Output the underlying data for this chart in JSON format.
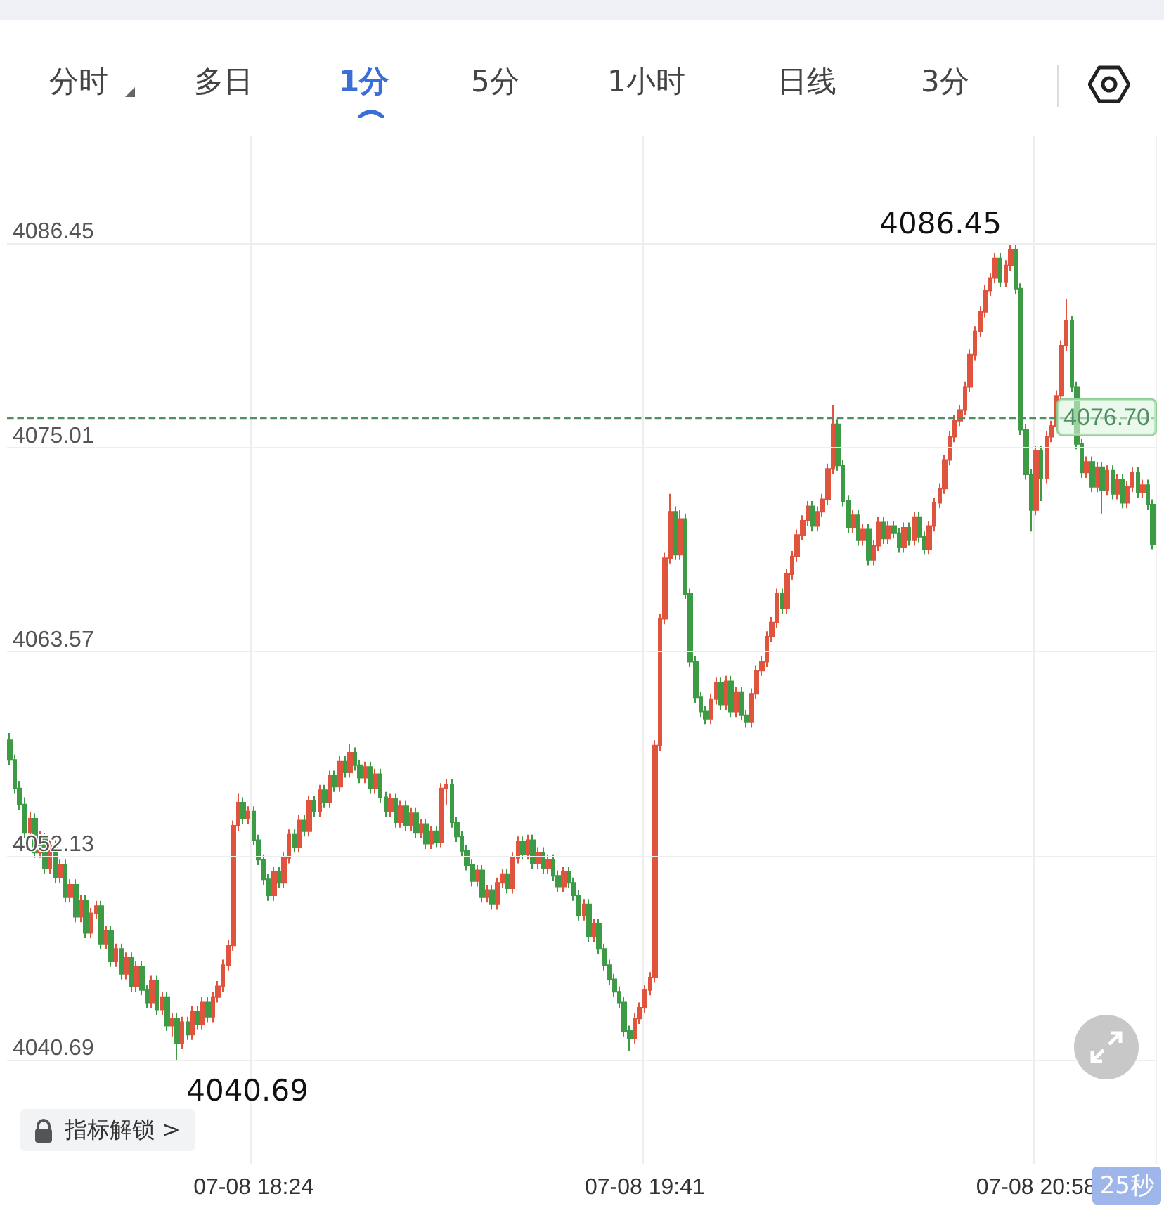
{
  "chart_data": {
    "type": "candlestick",
    "annotations": [
      "分时",
      "多日",
      "1分",
      "5分",
      "1小时",
      "日线",
      "3分",
      "指标解锁 >",
      "25秒",
      "4086.45",
      "4040.69"
    ],
    "categories": [
      null,
      null,
      null,
      null,
      null,
      null,
      null,
      null,
      null,
      null,
      null,
      null,
      null,
      null,
      null,
      null,
      null,
      null,
      null,
      null,
      null,
      null,
      null,
      null,
      null,
      null,
      null,
      null,
      null,
      null,
      null,
      null,
      null,
      null,
      null,
      null,
      null,
      null,
      null,
      null,
      null,
      null,
      null,
      null,
      null,
      null,
      null,
      null,
      "07-08 18:24",
      null,
      null,
      null,
      null,
      null,
      null,
      null,
      null,
      null,
      null,
      null,
      null,
      null,
      null,
      null,
      null,
      null,
      null,
      null,
      null,
      null,
      null,
      null,
      null,
      null,
      null,
      null,
      null,
      null,
      null,
      null,
      null,
      null,
      null,
      null,
      null,
      null,
      null,
      null,
      null,
      null,
      null,
      null,
      null,
      null,
      null,
      null,
      null,
      null,
      null,
      null,
      null,
      null,
      null,
      null,
      null,
      null,
      null,
      null,
      null,
      null,
      null,
      null,
      null,
      null,
      null,
      null,
      null,
      null,
      null,
      null,
      null,
      null,
      null,
      null,
      null,
      "07-08 19:41",
      null,
      null,
      null,
      null,
      null,
      null,
      null,
      null,
      null,
      null,
      null,
      null,
      null,
      null,
      null,
      null,
      null,
      null,
      null,
      null,
      null,
      null,
      null,
      null,
      null,
      null,
      null,
      null,
      null,
      null,
      null,
      null,
      null,
      null,
      null,
      null,
      null,
      null,
      null,
      null,
      null,
      null,
      null,
      null,
      null,
      null,
      null,
      null,
      null,
      null,
      null,
      null,
      null,
      null,
      null,
      null,
      null,
      null,
      null,
      null,
      null,
      null,
      null,
      null,
      null,
      null,
      null,
      null,
      null,
      null,
      null,
      null,
      null,
      null,
      null,
      null,
      "07-08 20:58",
      null,
      null,
      null,
      null,
      null,
      null,
      null,
      null,
      null,
      null,
      null,
      null,
      null,
      null,
      null,
      null,
      null,
      null,
      null,
      null,
      null,
      null,
      null
    ],
    "ohlc": [
      [
        4058.6,
        4059.0,
        4057.2,
        4057.5
      ],
      [
        4057.5,
        4057.8,
        4055.6,
        4055.9
      ],
      [
        4055.9,
        4056.3,
        4054.7,
        4055.0
      ],
      [
        4055.0,
        4055.4,
        4053.1,
        4053.4
      ],
      [
        4053.4,
        4054.6,
        4053.1,
        4054.2
      ],
      [
        4054.2,
        4054.5,
        4052.0,
        4052.3
      ],
      [
        4052.3,
        4053.5,
        4052.0,
        4053.1
      ],
      [
        4053.1,
        4053.4,
        4051.1,
        4051.4
      ],
      [
        4051.4,
        4053.0,
        4051.1,
        4052.7
      ],
      [
        4052.7,
        4053.0,
        4050.6,
        4050.9
      ],
      [
        4050.9,
        4051.9,
        4050.6,
        4051.6
      ],
      [
        4051.6,
        4051.9,
        4049.5,
        4049.8
      ],
      [
        4049.8,
        4050.8,
        4049.5,
        4050.5
      ],
      [
        4050.5,
        4050.8,
        4048.4,
        4048.7
      ],
      [
        4048.7,
        4049.9,
        4048.4,
        4049.6
      ],
      [
        4049.6,
        4049.9,
        4047.5,
        4047.8
      ],
      [
        4047.8,
        4049.2,
        4047.5,
        4048.9
      ],
      [
        4048.9,
        4049.6,
        4048.6,
        4049.3
      ],
      [
        4049.3,
        4049.6,
        4046.9,
        4047.2
      ],
      [
        4047.2,
        4048.2,
        4046.9,
        4047.9
      ],
      [
        4047.9,
        4048.2,
        4045.9,
        4046.2
      ],
      [
        4046.2,
        4047.2,
        4045.9,
        4046.9
      ],
      [
        4046.9,
        4047.2,
        4045.2,
        4045.5
      ],
      [
        4045.5,
        4046.7,
        4045.2,
        4046.4
      ],
      [
        4046.4,
        4046.7,
        4044.5,
        4044.8
      ],
      [
        4044.8,
        4046.2,
        4044.5,
        4045.9
      ],
      [
        4045.9,
        4046.2,
        4044.3,
        4044.6
      ],
      [
        4044.6,
        4044.9,
        4043.6,
        4043.9
      ],
      [
        4043.9,
        4045.4,
        4043.6,
        4045.1
      ],
      [
        4045.1,
        4045.4,
        4043.2,
        4043.5
      ],
      [
        4043.5,
        4044.5,
        4043.2,
        4044.2
      ],
      [
        4044.2,
        4044.5,
        4042.3,
        4042.6
      ],
      [
        4042.6,
        4043.3,
        4042.0,
        4043.0
      ],
      [
        4043.0,
        4043.3,
        4040.69,
        4041.6
      ],
      [
        4041.6,
        4043.1,
        4041.3,
        4042.8
      ],
      [
        4042.8,
        4043.1,
        4041.8,
        4042.1
      ],
      [
        4042.1,
        4043.7,
        4041.8,
        4043.4
      ],
      [
        4043.4,
        4043.7,
        4042.4,
        4042.7
      ],
      [
        4042.7,
        4044.2,
        4042.4,
        4043.9
      ],
      [
        4043.9,
        4044.2,
        4042.8,
        4043.1
      ],
      [
        4043.1,
        4044.5,
        4042.8,
        4044.2
      ],
      [
        4044.2,
        4045.1,
        4043.9,
        4044.8
      ],
      [
        4044.8,
        4046.3,
        4044.5,
        4046.0
      ],
      [
        4046.0,
        4047.4,
        4045.7,
        4047.1
      ],
      [
        4047.1,
        4054.1,
        4046.8,
        4053.8
      ],
      [
        4053.8,
        4055.6,
        4053.5,
        4055.1
      ],
      [
        4055.1,
        4055.4,
        4053.9,
        4054.2
      ],
      [
        4054.2,
        4054.9,
        4053.9,
        4054.6
      ],
      [
        4054.6,
        4054.9,
        4052.7,
        4053.0
      ],
      [
        4053.0,
        4053.3,
        4051.6,
        4051.9
      ],
      [
        4051.9,
        4052.2,
        4050.5,
        4050.8
      ],
      [
        4050.8,
        4051.1,
        4049.6,
        4049.9
      ],
      [
        4049.9,
        4051.5,
        4049.6,
        4051.2
      ],
      [
        4051.2,
        4051.5,
        4050.3,
        4050.6
      ],
      [
        4050.6,
        4052.3,
        4050.3,
        4052.0
      ],
      [
        4052.0,
        4053.6,
        4051.7,
        4053.3
      ],
      [
        4053.3,
        4053.6,
        4052.3,
        4052.6
      ],
      [
        4052.6,
        4054.4,
        4052.3,
        4054.1
      ],
      [
        4054.1,
        4054.4,
        4053.2,
        4053.5
      ],
      [
        4053.5,
        4055.5,
        4053.2,
        4055.2
      ],
      [
        4055.2,
        4055.5,
        4054.3,
        4054.6
      ],
      [
        4054.6,
        4056.1,
        4054.3,
        4055.8
      ],
      [
        4055.8,
        4056.1,
        4054.8,
        4055.1
      ],
      [
        4055.1,
        4056.9,
        4054.8,
        4056.6
      ],
      [
        4056.6,
        4056.9,
        4055.7,
        4056.0
      ],
      [
        4056.0,
        4057.7,
        4055.7,
        4057.4
      ],
      [
        4057.4,
        4057.7,
        4056.5,
        4056.8
      ],
      [
        4056.8,
        4058.4,
        4056.5,
        4057.9
      ],
      [
        4057.9,
        4058.2,
        4056.9,
        4057.2
      ],
      [
        4057.2,
        4057.5,
        4056.2,
        4056.5
      ],
      [
        4056.5,
        4057.4,
        4056.2,
        4057.1
      ],
      [
        4057.1,
        4057.4,
        4055.6,
        4055.9
      ],
      [
        4055.9,
        4057.0,
        4055.6,
        4056.7
      ],
      [
        4056.7,
        4057.0,
        4055.1,
        4055.4
      ],
      [
        4055.4,
        4055.7,
        4054.3,
        4054.6
      ],
      [
        4054.6,
        4055.6,
        4054.3,
        4055.3
      ],
      [
        4055.3,
        4055.6,
        4053.7,
        4054.0
      ],
      [
        4054.0,
        4055.2,
        4053.7,
        4054.9
      ],
      [
        4054.9,
        4055.2,
        4053.5,
        4053.8
      ],
      [
        4053.8,
        4054.8,
        4053.5,
        4054.5
      ],
      [
        4054.5,
        4054.8,
        4053.1,
        4053.4
      ],
      [
        4053.4,
        4054.2,
        4053.1,
        4053.9
      ],
      [
        4053.9,
        4054.2,
        4052.5,
        4052.8
      ],
      [
        4052.8,
        4053.8,
        4052.5,
        4053.5
      ],
      [
        4053.5,
        4053.8,
        4052.6,
        4052.9
      ],
      [
        4052.9,
        4056.2,
        4052.6,
        4055.9
      ],
      [
        4055.9,
        4056.4,
        4055.0,
        4056.1
      ],
      [
        4056.1,
        4056.4,
        4053.7,
        4054.0
      ],
      [
        4054.0,
        4054.3,
        4052.9,
        4053.2
      ],
      [
        4053.2,
        4053.5,
        4052.1,
        4052.4
      ],
      [
        4052.4,
        4052.7,
        4051.3,
        4051.6
      ],
      [
        4051.6,
        4051.9,
        4050.4,
        4050.7
      ],
      [
        4050.7,
        4051.6,
        4050.4,
        4051.3
      ],
      [
        4051.3,
        4051.6,
        4049.5,
        4049.8
      ],
      [
        4049.8,
        4050.5,
        4049.5,
        4050.2
      ],
      [
        4050.2,
        4050.5,
        4049.1,
        4049.4
      ],
      [
        4049.4,
        4050.9,
        4049.1,
        4050.6
      ],
      [
        4050.6,
        4051.4,
        4050.3,
        4051.1
      ],
      [
        4051.1,
        4051.4,
        4050.0,
        4050.3
      ],
      [
        4050.3,
        4052.3,
        4050.0,
        4052.0
      ],
      [
        4052.0,
        4053.2,
        4051.7,
        4052.9
      ],
      [
        4052.9,
        4053.2,
        4051.9,
        4052.2
      ],
      [
        4052.2,
        4053.3,
        4051.9,
        4053.0
      ],
      [
        4053.0,
        4053.3,
        4051.4,
        4051.7
      ],
      [
        4051.7,
        4052.6,
        4051.4,
        4052.3
      ],
      [
        4052.3,
        4052.6,
        4051.1,
        4051.4
      ],
      [
        4051.4,
        4052.2,
        4051.1,
        4051.9
      ],
      [
        4051.9,
        4052.2,
        4050.7,
        4051.0
      ],
      [
        4051.0,
        4051.3,
        4050.1,
        4050.4
      ],
      [
        4050.4,
        4051.5,
        4050.1,
        4051.2
      ],
      [
        4051.2,
        4051.5,
        4050.3,
        4050.6
      ],
      [
        4050.6,
        4050.9,
        4049.6,
        4049.9
      ],
      [
        4049.9,
        4050.2,
        4048.5,
        4048.8
      ],
      [
        4048.8,
        4049.7,
        4048.5,
        4049.4
      ],
      [
        4049.4,
        4049.7,
        4047.3,
        4047.6
      ],
      [
        4047.6,
        4048.6,
        4047.3,
        4048.3
      ],
      [
        4048.3,
        4048.6,
        4046.6,
        4046.9
      ],
      [
        4046.9,
        4047.2,
        4045.7,
        4046.0
      ],
      [
        4046.0,
        4046.3,
        4044.9,
        4045.2
      ],
      [
        4045.2,
        4045.5,
        4044.2,
        4044.5
      ],
      [
        4044.5,
        4044.8,
        4043.6,
        4043.9
      ],
      [
        4043.9,
        4044.2,
        4042.0,
        4042.3
      ],
      [
        4042.3,
        4042.6,
        4041.2,
        4041.9
      ],
      [
        4041.9,
        4043.3,
        4041.6,
        4043.0
      ],
      [
        4043.0,
        4043.9,
        4042.7,
        4043.6
      ],
      [
        4043.6,
        4044.9,
        4043.3,
        4044.6
      ],
      [
        4044.6,
        4045.6,
        4044.3,
        4045.3
      ],
      [
        4045.3,
        4058.6,
        4045.0,
        4058.3
      ],
      [
        4058.3,
        4065.7,
        4058.0,
        4065.4
      ],
      [
        4065.4,
        4069.1,
        4065.1,
        4068.8
      ],
      [
        4068.8,
        4072.4,
        4068.5,
        4071.4
      ],
      [
        4071.4,
        4071.7,
        4068.7,
        4069.0
      ],
      [
        4069.0,
        4071.5,
        4068.7,
        4071.0
      ],
      [
        4071.0,
        4071.3,
        4066.5,
        4066.8
      ],
      [
        4066.8,
        4067.1,
        4062.7,
        4063.0
      ],
      [
        4063.0,
        4063.3,
        4060.7,
        4061.0
      ],
      [
        4061.0,
        4061.3,
        4059.9,
        4060.2
      ],
      [
        4060.2,
        4060.5,
        4059.5,
        4059.8
      ],
      [
        4059.8,
        4061.2,
        4059.5,
        4060.9
      ],
      [
        4060.9,
        4062.1,
        4060.6,
        4061.8
      ],
      [
        4061.8,
        4062.1,
        4060.3,
        4060.6
      ],
      [
        4060.6,
        4062.2,
        4060.3,
        4061.9
      ],
      [
        4061.9,
        4062.2,
        4059.9,
        4060.2
      ],
      [
        4060.2,
        4061.6,
        4059.9,
        4061.3
      ],
      [
        4061.3,
        4061.6,
        4059.7,
        4060.0
      ],
      [
        4060.0,
        4060.3,
        4059.3,
        4059.6
      ],
      [
        4059.6,
        4061.5,
        4059.3,
        4061.2
      ],
      [
        4061.2,
        4062.8,
        4060.9,
        4062.5
      ],
      [
        4062.5,
        4063.3,
        4062.2,
        4063.0
      ],
      [
        4063.0,
        4064.7,
        4062.7,
        4064.4
      ],
      [
        4064.4,
        4065.5,
        4064.1,
        4065.2
      ],
      [
        4065.2,
        4067.1,
        4064.9,
        4066.8
      ],
      [
        4066.8,
        4067.1,
        4065.7,
        4066.0
      ],
      [
        4066.0,
        4068.2,
        4065.7,
        4067.9
      ],
      [
        4067.9,
        4069.2,
        4067.6,
        4068.9
      ],
      [
        4068.9,
        4070.4,
        4068.6,
        4070.1
      ],
      [
        4070.1,
        4071.2,
        4069.8,
        4070.9
      ],
      [
        4070.9,
        4072.0,
        4070.6,
        4071.7
      ],
      [
        4071.7,
        4072.0,
        4070.3,
        4070.6
      ],
      [
        4070.6,
        4071.7,
        4070.3,
        4071.4
      ],
      [
        4071.4,
        4072.4,
        4071.1,
        4072.1
      ],
      [
        4072.1,
        4074.1,
        4071.8,
        4073.8
      ],
      [
        4073.8,
        4077.4,
        4073.5,
        4076.3
      ],
      [
        4076.3,
        4076.6,
        4073.7,
        4074.0
      ],
      [
        4074.0,
        4074.3,
        4071.7,
        4072.0
      ],
      [
        4072.0,
        4072.3,
        4070.2,
        4070.5
      ],
      [
        4070.5,
        4071.5,
        4070.2,
        4071.2
      ],
      [
        4071.2,
        4071.5,
        4069.5,
        4069.8
      ],
      [
        4069.8,
        4070.7,
        4069.5,
        4070.4
      ],
      [
        4070.4,
        4070.7,
        4068.4,
        4068.7
      ],
      [
        4068.7,
        4069.8,
        4068.4,
        4069.5
      ],
      [
        4069.5,
        4071.1,
        4069.2,
        4070.8
      ],
      [
        4070.8,
        4071.1,
        4069.6,
        4069.9
      ],
      [
        4069.9,
        4070.9,
        4069.6,
        4070.6
      ],
      [
        4070.6,
        4070.9,
        4069.9,
        4070.2
      ],
      [
        4070.2,
        4070.5,
        4069.1,
        4069.4
      ],
      [
        4069.4,
        4070.8,
        4069.1,
        4070.5
      ],
      [
        4070.5,
        4070.8,
        4069.5,
        4069.8
      ],
      [
        4069.8,
        4071.4,
        4069.5,
        4071.1
      ],
      [
        4071.1,
        4071.4,
        4069.7,
        4070.0
      ],
      [
        4070.0,
        4070.3,
        4069.0,
        4069.3
      ],
      [
        4069.3,
        4070.9,
        4069.0,
        4070.6
      ],
      [
        4070.6,
        4072.2,
        4070.3,
        4071.9
      ],
      [
        4071.9,
        4073.0,
        4071.6,
        4072.7
      ],
      [
        4072.7,
        4074.6,
        4072.4,
        4074.3
      ],
      [
        4074.3,
        4075.9,
        4074.0,
        4075.6
      ],
      [
        4075.6,
        4076.8,
        4075.3,
        4076.5
      ],
      [
        4076.5,
        4077.4,
        4076.2,
        4077.1
      ],
      [
        4077.1,
        4078.7,
        4076.8,
        4078.4
      ],
      [
        4078.4,
        4080.5,
        4078.1,
        4080.2
      ],
      [
        4080.2,
        4081.8,
        4079.9,
        4081.5
      ],
      [
        4081.5,
        4082.9,
        4081.2,
        4082.6
      ],
      [
        4082.6,
        4084.1,
        4082.3,
        4083.8
      ],
      [
        4083.8,
        4084.8,
        4083.5,
        4084.5
      ],
      [
        4084.5,
        4085.9,
        4084.2,
        4085.6
      ],
      [
        4085.6,
        4085.9,
        4084.0,
        4084.3
      ],
      [
        4084.3,
        4085.5,
        4084.0,
        4085.2
      ],
      [
        4085.2,
        4086.45,
        4084.9,
        4086.1
      ],
      [
        4086.1,
        4086.4,
        4083.6,
        4083.9
      ],
      [
        4083.9,
        4084.2,
        4075.7,
        4076.0
      ],
      [
        4076.0,
        4076.3,
        4073.2,
        4073.5
      ],
      [
        4073.5,
        4073.8,
        4070.3,
        4071.5
      ],
      [
        4071.5,
        4075.1,
        4071.2,
        4074.8
      ],
      [
        4074.8,
        4075.1,
        4072.0,
        4073.3
      ],
      [
        4073.3,
        4075.9,
        4073.0,
        4075.6
      ],
      [
        4075.6,
        4076.5,
        4075.3,
        4076.2
      ],
      [
        4076.2,
        4078.2,
        4075.9,
        4077.9
      ],
      [
        4077.9,
        4081.0,
        4077.6,
        4080.7
      ],
      [
        4080.7,
        4083.3,
        4080.4,
        4082.1
      ],
      [
        4082.1,
        4082.4,
        4078.1,
        4078.4
      ],
      [
        4078.4,
        4078.7,
        4074.9,
        4075.2
      ],
      [
        4075.2,
        4075.5,
        4073.3,
        4073.6
      ],
      [
        4073.6,
        4074.5,
        4073.3,
        4074.2
      ],
      [
        4074.2,
        4074.5,
        4072.5,
        4072.8
      ],
      [
        4072.8,
        4074.2,
        4072.5,
        4073.9
      ],
      [
        4073.9,
        4074.2,
        4071.3,
        4072.6
      ],
      [
        4072.6,
        4074.0,
        4072.3,
        4073.7
      ],
      [
        4073.7,
        4074.0,
        4072.1,
        4072.4
      ],
      [
        4072.4,
        4073.5,
        4072.1,
        4073.2
      ],
      [
        4073.2,
        4073.5,
        4071.6,
        4071.9
      ],
      [
        4071.9,
        4073.1,
        4071.6,
        4072.8
      ],
      [
        4072.8,
        4073.9,
        4072.5,
        4073.6
      ],
      [
        4073.6,
        4073.9,
        4072.2,
        4072.5
      ],
      [
        4072.5,
        4073.2,
        4072.2,
        4072.9
      ],
      [
        4072.9,
        4073.2,
        4071.5,
        4071.8
      ],
      [
        4071.8,
        4072.1,
        4069.3,
        4069.6
      ]
    ],
    "ylim": [
      4034.86,
      4092.44
    ],
    "yticks": [
      4086.45,
      4075.01,
      4063.57,
      4052.13,
      4040.69
    ],
    "ref_lines": [
      {
        "axis": "y",
        "value": 4076.7,
        "label": "4076.70",
        "color": "#4f8f62",
        "line_style": "dashed"
      }
    ],
    "grid": true
  }
}
